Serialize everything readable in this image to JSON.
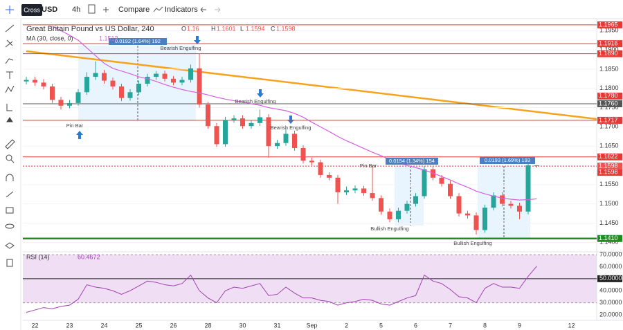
{
  "toolbar": {
    "tooltip": "Cross",
    "symbol": "USD",
    "interval": "4h",
    "compare": "Compare",
    "indicators": "Indicators"
  },
  "chart_data": [
    {
      "type": "candlestick",
      "title": "Great Britain Pound vs US Dollar, 240",
      "legend_labels": [
        "O",
        "H",
        "L",
        "C"
      ],
      "categories": [
        null,
        "22",
        null,
        null,
        null,
        "23",
        null,
        null,
        null,
        "24",
        null,
        null,
        null,
        "25",
        null,
        null,
        null,
        "26",
        null,
        null,
        null,
        "28",
        null,
        null,
        null,
        "30",
        null,
        null,
        null,
        "31",
        null,
        null,
        null,
        "Sep",
        null,
        null,
        null,
        "2",
        null,
        null,
        null,
        "5",
        null,
        null,
        null,
        "6",
        null,
        null,
        null,
        "7",
        null,
        null,
        null,
        "8",
        null,
        null,
        null,
        "9",
        null,
        null,
        null,
        null,
        null,
        "12",
        null,
        null
      ],
      "open": [
        1.1818,
        1.1822,
        1.1815,
        1.1805,
        1.177,
        1.1755,
        1.1762,
        1.179,
        1.183,
        1.184,
        1.182,
        1.1805,
        1.1775,
        1.179,
        1.1812,
        1.183,
        1.1838,
        1.1825,
        1.1815,
        1.1822,
        1.1852,
        1.1758,
        1.1702,
        1.1655,
        1.1718,
        1.1722,
        1.1702,
        1.171,
        1.1725,
        1.165,
        1.1658,
        1.1682,
        1.1645,
        1.1612,
        1.1608,
        1.1575,
        1.1568,
        1.153,
        1.1535,
        1.154,
        1.1528,
        1.1515,
        1.148,
        1.146,
        1.1482,
        1.15,
        1.152,
        1.159,
        1.1568,
        1.1552,
        1.152,
        1.1475,
        1.147,
        1.1432,
        1.149,
        1.1522,
        1.15,
        1.1495,
        1.148,
        1.16,
        null,
        null,
        null,
        null,
        null,
        null
      ],
      "high": [
        1.183,
        1.183,
        1.1824,
        1.1812,
        1.1778,
        1.177,
        1.1798,
        1.1842,
        1.187,
        1.1848,
        1.1828,
        1.1812,
        1.1798,
        1.182,
        1.1838,
        1.1845,
        1.1846,
        1.1832,
        1.183,
        1.1862,
        1.189,
        1.1765,
        1.171,
        1.1726,
        1.173,
        1.173,
        1.1718,
        1.1745,
        1.1733,
        1.1666,
        1.17,
        1.169,
        1.1652,
        1.162,
        1.1615,
        1.1582,
        1.1575,
        1.1545,
        1.1548,
        1.1547,
        1.16,
        1.1522,
        1.1488,
        1.149,
        1.1508,
        1.1528,
        1.1598,
        1.1598,
        1.1575,
        1.156,
        1.1528,
        1.1482,
        1.1478,
        1.1498,
        1.153,
        1.153,
        1.1508,
        1.1503,
        1.1608,
        1.1601,
        null,
        null,
        null,
        null,
        null,
        null
      ],
      "low": [
        1.181,
        1.1807,
        1.1797,
        1.1762,
        1.1745,
        1.1748,
        1.1755,
        1.1783,
        1.1822,
        1.1812,
        1.1797,
        1.1767,
        1.1768,
        1.1783,
        1.1805,
        1.1822,
        1.1818,
        1.1808,
        1.1808,
        1.1815,
        1.175,
        1.1695,
        1.1648,
        1.1648,
        1.1711,
        1.1695,
        1.1695,
        1.1703,
        1.162,
        1.1643,
        1.1651,
        1.1638,
        1.1605,
        1.16,
        1.1568,
        1.1561,
        1.15,
        1.1523,
        1.1528,
        1.1521,
        1.1508,
        1.1472,
        1.1452,
        1.1452,
        1.1475,
        1.1493,
        1.1513,
        1.1561,
        1.1545,
        1.1513,
        1.1467,
        1.1462,
        1.142,
        1.1425,
        1.1483,
        1.1493,
        1.1488,
        1.146,
        1.1473,
        1.1594,
        null,
        null,
        null,
        null,
        null,
        null
      ],
      "close": [
        1.1822,
        1.1815,
        1.1805,
        1.177,
        1.1755,
        1.1762,
        1.179,
        1.183,
        1.184,
        1.182,
        1.1805,
        1.1775,
        1.179,
        1.1812,
        1.183,
        1.1838,
        1.1825,
        1.1815,
        1.1822,
        1.1852,
        1.1758,
        1.1702,
        1.1655,
        1.1718,
        1.1722,
        1.1702,
        1.171,
        1.1725,
        1.165,
        1.1658,
        1.1682,
        1.1645,
        1.1612,
        1.1608,
        1.1575,
        1.1568,
        1.153,
        1.1535,
        1.154,
        1.1528,
        1.1515,
        1.148,
        1.146,
        1.1482,
        1.15,
        1.152,
        1.159,
        1.1568,
        1.1552,
        1.152,
        1.1475,
        1.147,
        1.1432,
        1.149,
        1.1522,
        1.15,
        1.1495,
        1.148,
        1.16,
        1.1598,
        null,
        null,
        null,
        null,
        null,
        null
      ],
      "up_color": "#26a69a",
      "down_color": "#ef5350",
      "ma": {
        "name": "MA (30, close, 0)",
        "color": "#d55fe0",
        "values": [
          null,
          null,
          null,
          1.1962,
          1.195,
          1.1938,
          1.1925,
          1.1905,
          1.1885,
          1.1865,
          1.1852,
          1.1845,
          1.1838,
          1.183,
          1.1825,
          1.1818,
          1.181,
          1.1803,
          1.1797,
          1.1792,
          1.1788,
          1.1783,
          1.1777,
          1.1772,
          1.1768,
          1.1765,
          1.176,
          1.1756,
          1.175,
          1.1746,
          1.1742,
          1.1735,
          1.1725,
          1.1712,
          1.17,
          1.1688,
          1.1675,
          1.1664,
          1.1654,
          1.1644,
          1.1634,
          1.1625,
          1.1615,
          1.1607,
          1.16,
          1.1594,
          1.1588,
          1.158,
          1.1571,
          1.1562,
          1.1552,
          1.1543,
          1.1533,
          1.1526,
          1.152,
          1.1515,
          1.1512,
          1.151,
          1.1511,
          1.1513,
          null,
          null,
          null,
          null,
          null,
          null
        ]
      },
      "ylim": [
        1.1379,
        1.1981
      ],
      "yticks": [
        {
          "value": 1.195,
          "label": "1.1950"
        },
        {
          "value": 1.19,
          "label": "1.1900"
        },
        {
          "value": 1.185,
          "label": "1.1850"
        },
        {
          "value": 1.18,
          "label": "1.1800"
        },
        {
          "value": 1.175,
          "label": "1.1750"
        },
        {
          "value": 1.17,
          "label": "1.1700"
        },
        {
          "value": 1.165,
          "label": "1.1650"
        },
        {
          "value": 1.16,
          "label": "1.1600"
        },
        {
          "value": 1.155,
          "label": "1.1550"
        },
        {
          "value": 1.15,
          "label": "1.1500"
        },
        {
          "value": 1.145,
          "label": "1.1450"
        },
        {
          "value": 1.14,
          "label": "1.1400"
        }
      ],
      "levels": [
        {
          "value": 1.1965,
          "color": "#e53935"
        },
        {
          "value": 1.1916,
          "color": "#e53935"
        },
        {
          "value": 1.189,
          "label": "1.1890",
          "color": "#e53935"
        },
        {
          "value": 1.178,
          "label": "1.1780",
          "color": "#e53935",
          "line": false
        },
        {
          "value": 1.176,
          "label": "1.1760",
          "color": "#555555"
        },
        {
          "value": 1.1717,
          "color": "#e53935"
        },
        {
          "value": 1.1622,
          "color": "#e53935"
        },
        {
          "value": 1.1598,
          "color": "#e53935",
          "dotted": true
        },
        {
          "value": 1.141,
          "label": "1.1410",
          "color": "#1e8c1e",
          "thick": true
        }
      ],
      "annotations": [
        "Pin Bar",
        "Bearish Engulfing",
        "Bearish Engulfing",
        "Bearish Engulfing",
        "Pin Bar",
        "Bullish Engulfing",
        "Bullish Engulfing"
      ],
      "measures": [
        "0.0192 (1.64%) 192",
        "0.0154 (1.34%) 154",
        "0.0193 (1.69%) 193"
      ]
    },
    {
      "type": "line",
      "name": "RSI (14)",
      "color": "#a040b0",
      "values": [
        22,
        24,
        26,
        25,
        27,
        28,
        33,
        45,
        43,
        42,
        40,
        37,
        40,
        44,
        48,
        47,
        45,
        44,
        46,
        53,
        40,
        34,
        30,
        40,
        43,
        42,
        44,
        46,
        36,
        37,
        43,
        38,
        34,
        34,
        32,
        31,
        28,
        30,
        31,
        33,
        32,
        29,
        28,
        31,
        34,
        36,
        53,
        48,
        46,
        41,
        35,
        34,
        30,
        42,
        46,
        43,
        43,
        42,
        52,
        60.4672,
        null,
        null,
        null,
        null,
        null,
        null
      ],
      "ylim": [
        15.4,
        71.2
      ],
      "yticks": [
        {
          "value": 70,
          "label": "70.0000"
        },
        {
          "value": 60,
          "label": "60.0000"
        },
        {
          "value": 50,
          "label": "50.0000"
        },
        {
          "value": 40,
          "label": "40.0000"
        },
        {
          "value": 30,
          "label": "30.0000"
        },
        {
          "value": 20,
          "label": "20.0000"
        }
      ],
      "band": [
        30,
        70
      ],
      "midline": 50
    }
  ]
}
